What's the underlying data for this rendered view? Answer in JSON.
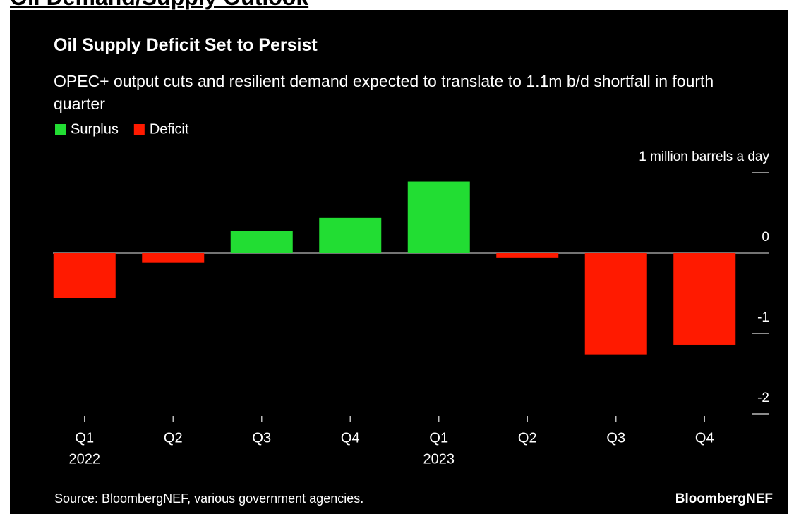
{
  "page_heading": "Oil Demand/Supply Outlook",
  "chart_data": {
    "type": "bar",
    "title": "Oil Supply Deficit Set to Persist",
    "subtitle": "OPEC+ output cuts and resilient demand expected to translate to 1.1m b/d shortfall in fourth quarter",
    "categories": [
      "Q1",
      "Q2",
      "Q3",
      "Q4",
      "Q1",
      "Q2",
      "Q3",
      "Q4"
    ],
    "years": [
      "2022",
      null,
      null,
      null,
      "2023",
      null,
      null,
      null
    ],
    "series": [
      {
        "name": "Surplus",
        "color": "#22dd33",
        "values": [
          null,
          null,
          0.28,
          0.44,
          0.89,
          null,
          null,
          null
        ]
      },
      {
        "name": "Deficit",
        "color": "#ff1a00",
        "values": [
          -0.56,
          -0.12,
          null,
          null,
          null,
          -0.06,
          -1.26,
          -1.14
        ]
      }
    ],
    "ylim": [
      -2,
      1
    ],
    "yticks": [
      {
        "value": 1,
        "label": "1 million barrels a day"
      },
      0,
      -1,
      -2
    ],
    "source": "Source: BloombergNEF, various government agencies.",
    "brand": "BloombergNEF"
  }
}
